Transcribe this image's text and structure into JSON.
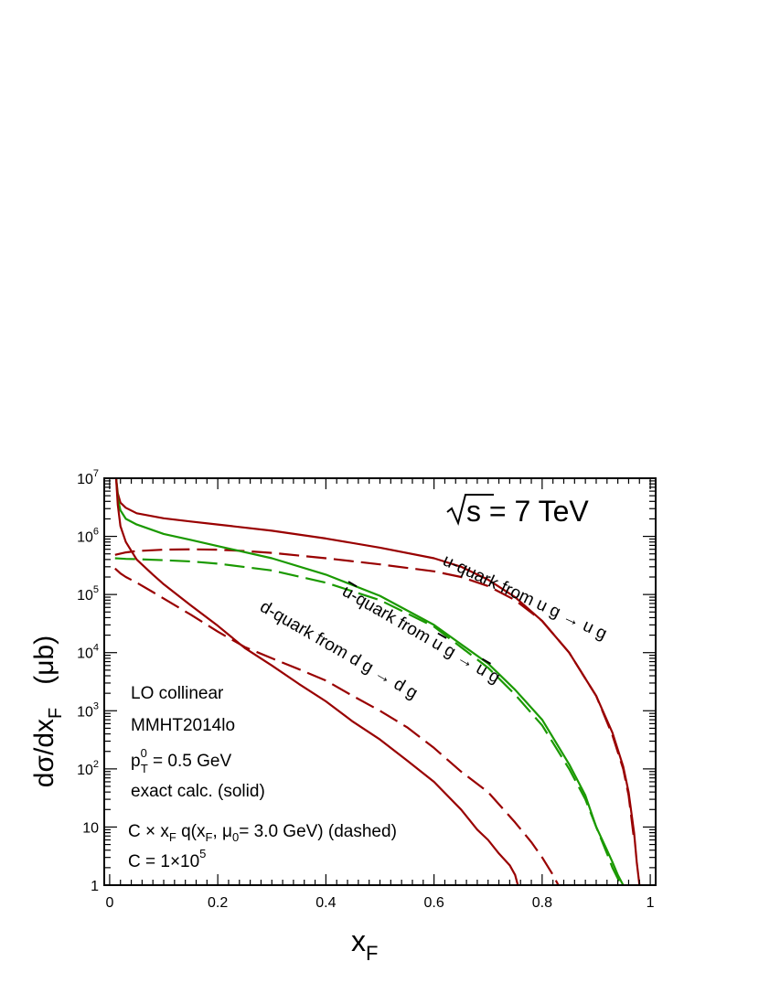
{
  "chart_data": {
    "type": "line",
    "xlabel": "x",
    "xlabel_sub": "F",
    "ylabel_main": "dσ/dx",
    "ylabel_sub": "F",
    "ylabel_unit": "(μb)",
    "yscale": "log",
    "xlim": [
      -0.01,
      1.01
    ],
    "ylim": [
      1,
      10000000
    ],
    "x_ticks": [
      {
        "v": 0,
        "t": "0"
      },
      {
        "v": 0.2,
        "t": "0.2"
      },
      {
        "v": 0.4,
        "t": "0.4"
      },
      {
        "v": 0.6,
        "t": "0.6"
      },
      {
        "v": 0.8,
        "t": "0.8"
      },
      {
        "v": 1,
        "t": "1"
      }
    ],
    "y_ticks": [
      {
        "v": 1,
        "base": "1",
        "exp": ""
      },
      {
        "v": 10,
        "base": "10",
        "exp": ""
      },
      {
        "v": 100,
        "base": "10",
        "exp": "2"
      },
      {
        "v": 1000,
        "base": "10",
        "exp": "3"
      },
      {
        "v": 10000,
        "base": "10",
        "exp": "4"
      },
      {
        "v": 100000,
        "base": "10",
        "exp": "5"
      },
      {
        "v": 1000000,
        "base": "10",
        "exp": "6"
      },
      {
        "v": 10000000,
        "base": "10",
        "exp": "7"
      }
    ],
    "annotations": {
      "energy": {
        "root": "s",
        "rest": " = 7 TeV"
      },
      "lines": [
        {
          "main": "LO collinear"
        },
        {
          "main": "MMHT2014lo"
        },
        {
          "pre": "p",
          "sub": "T",
          "sup": "0",
          "post": " = 0.5 GeV"
        },
        {
          "main": "exact calc. (solid)"
        },
        {
          "main": "C × x",
          "sub1": "F",
          "mid": " q(x",
          "sub2": "F",
          "mid2": ", μ",
          "sub3": "0",
          "post": "= 3.0 GeV) (dashed)"
        },
        {
          "main": "C = 1×10",
          "sup": "5"
        }
      ],
      "curve_labels": [
        {
          "text": "u-quark from u g → u g"
        },
        {
          "pre": "",
          "bar": "u",
          "mid": "-quark from ",
          "bar2": "u",
          "mid2": " g → ",
          "bar3": "u",
          "post": " g"
        },
        {
          "text": "d-quark from d g → d g"
        }
      ]
    },
    "colors": {
      "dark_red": "#990000",
      "green": "#1a9900",
      "axis": "#000000"
    },
    "series": [
      {
        "style": "solid",
        "color": "dark_red",
        "x": [
          0.012,
          0.015,
          0.02,
          0.03,
          0.05,
          0.1,
          0.15,
          0.2,
          0.3,
          0.4,
          0.5,
          0.6,
          0.65,
          0.7,
          0.75,
          0.8,
          0.85,
          0.9,
          0.93,
          0.95,
          0.96,
          0.97,
          0.975,
          0.98
        ],
        "y": [
          10000000,
          5500000,
          3800000,
          3100000,
          2500000,
          2050000,
          1800000,
          1600000,
          1250000,
          920000,
          640000,
          420000,
          300000,
          180000,
          90000,
          35000,
          10000,
          1800,
          420,
          110,
          40,
          8,
          2.5,
          1
        ]
      },
      {
        "style": "dashed",
        "color": "dark_red",
        "x": [
          0.01,
          0.03,
          0.05,
          0.1,
          0.15,
          0.2,
          0.25,
          0.3,
          0.4,
          0.5,
          0.6,
          0.65,
          0.7,
          0.75,
          0.8,
          0.85,
          0.9,
          0.93,
          0.95,
          0.96,
          0.97
        ],
        "y": [
          480000,
          530000,
          560000,
          590000,
          600000,
          590000,
          560000,
          520000,
          420000,
          330000,
          250000,
          200000,
          140000,
          80000,
          35000,
          10000,
          1800,
          380,
          100,
          35,
          6
        ]
      },
      {
        "style": "solid",
        "color": "green",
        "x": [
          0.012,
          0.015,
          0.02,
          0.03,
          0.05,
          0.1,
          0.15,
          0.2,
          0.3,
          0.4,
          0.5,
          0.6,
          0.7,
          0.75,
          0.8,
          0.85,
          0.88,
          0.9,
          0.92,
          0.93,
          0.94,
          0.95
        ],
        "y": [
          10000000,
          4500000,
          2800000,
          2000000,
          1600000,
          1100000,
          870000,
          680000,
          420000,
          220000,
          95000,
          30000,
          6500,
          2300,
          700,
          120,
          35,
          10,
          4,
          2.5,
          1.5,
          1
        ]
      },
      {
        "style": "dashed",
        "color": "green",
        "x": [
          0.01,
          0.03,
          0.05,
          0.1,
          0.15,
          0.2,
          0.3,
          0.4,
          0.5,
          0.6,
          0.7,
          0.75,
          0.8,
          0.85,
          0.88,
          0.9,
          0.92,
          0.93,
          0.94,
          0.95
        ],
        "y": [
          420000,
          410000,
          405000,
          390000,
          370000,
          340000,
          260000,
          160000,
          80000,
          28000,
          5500,
          1900,
          560,
          100,
          30,
          10,
          3.5,
          2,
          1.3,
          1
        ]
      },
      {
        "style": "solid",
        "color": "dark_red",
        "x": [
          0.012,
          0.015,
          0.02,
          0.03,
          0.05,
          0.08,
          0.1,
          0.15,
          0.2,
          0.25,
          0.3,
          0.35,
          0.4,
          0.45,
          0.5,
          0.55,
          0.6,
          0.65,
          0.68,
          0.7,
          0.72,
          0.74,
          0.75,
          0.755
        ],
        "y": [
          10000000,
          3500000,
          1500000,
          800000,
          400000,
          220000,
          150000,
          65000,
          29000,
          12000,
          6000,
          2900,
          1450,
          650,
          320,
          140,
          60,
          20,
          9,
          6,
          3.5,
          2.2,
          1.5,
          1
        ]
      },
      {
        "style": "dashed",
        "color": "dark_red",
        "x": [
          0.01,
          0.02,
          0.03,
          0.05,
          0.08,
          0.1,
          0.15,
          0.2,
          0.25,
          0.3,
          0.35,
          0.4,
          0.45,
          0.5,
          0.55,
          0.6,
          0.65,
          0.7,
          0.75,
          0.78,
          0.8,
          0.82,
          0.83
        ],
        "y": [
          280000,
          230000,
          200000,
          160000,
          110000,
          85000,
          45000,
          23000,
          12500,
          8000,
          5200,
          3300,
          1800,
          1000,
          520,
          230,
          90,
          40,
          12,
          5.5,
          3,
          1.5,
          1
        ]
      }
    ]
  }
}
